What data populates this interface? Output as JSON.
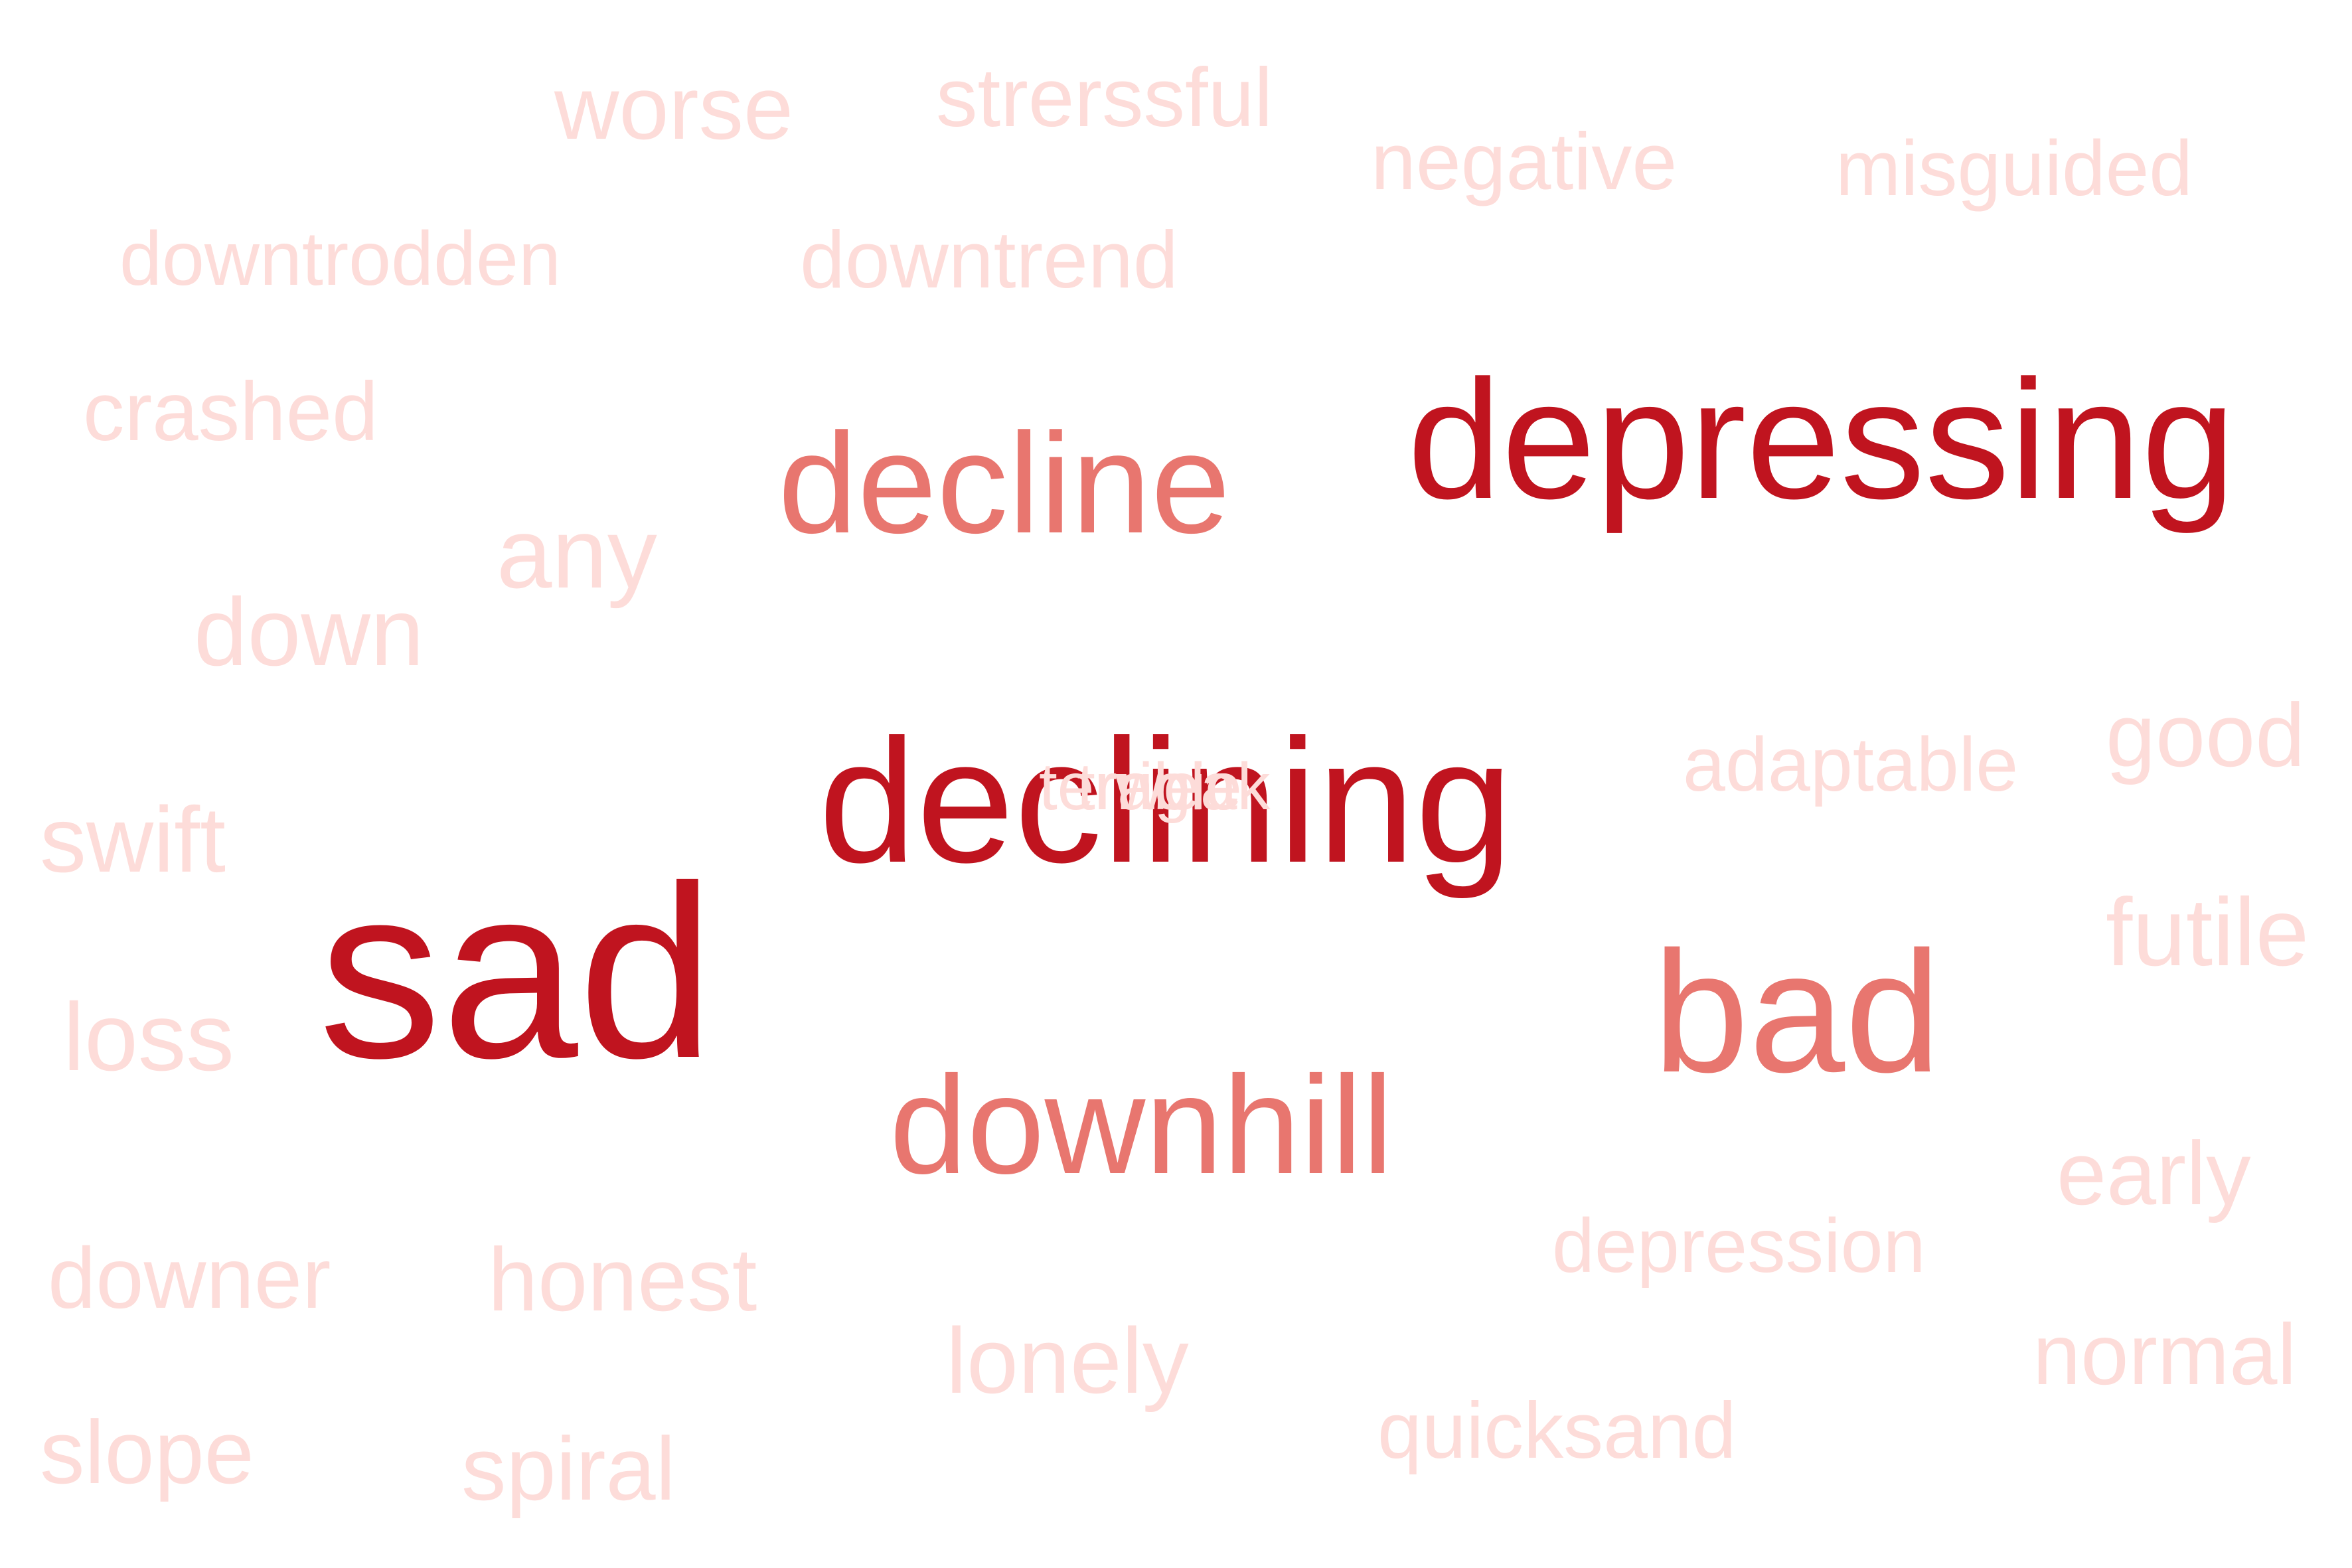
{
  "word_cloud": {
    "colors": {
      "high": "#c0141f",
      "mid": "#e8766f",
      "low": "#fddcd9"
    },
    "words": [
      {
        "id": "depressing",
        "text": "depressing",
        "tier": "high"
      },
      {
        "id": "declining",
        "text": "declining",
        "tier": "high"
      },
      {
        "id": "sad",
        "text": "sad",
        "tier": "high"
      },
      {
        "id": "decline",
        "text": "decline",
        "tier": "mid"
      },
      {
        "id": "bad",
        "text": "bad",
        "tier": "mid"
      },
      {
        "id": "downhill",
        "text": "downhill",
        "tier": "mid"
      },
      {
        "id": "worse",
        "text": "worse",
        "tier": "low"
      },
      {
        "id": "strerssful",
        "text": "strerssful",
        "tier": "low"
      },
      {
        "id": "negative",
        "text": "negative",
        "tier": "low"
      },
      {
        "id": "misguided",
        "text": "misguided",
        "tier": "low"
      },
      {
        "id": "downtrodden",
        "text": "downtrodden",
        "tier": "low"
      },
      {
        "id": "downtrend",
        "text": "downtrend",
        "tier": "low"
      },
      {
        "id": "crashed",
        "text": "crashed",
        "tier": "low"
      },
      {
        "id": "any",
        "text": "any",
        "tier": "low"
      },
      {
        "id": "down",
        "text": "down",
        "tier": "low"
      },
      {
        "id": "adaptable",
        "text": "adaptable",
        "tier": "low"
      },
      {
        "id": "good",
        "text": "good",
        "tier": "low"
      },
      {
        "id": "swift",
        "text": "swift",
        "tier": "low"
      },
      {
        "id": "futile",
        "text": "futile",
        "tier": "low"
      },
      {
        "id": "loss",
        "text": "loss",
        "tier": "low"
      },
      {
        "id": "early",
        "text": "early",
        "tier": "low"
      },
      {
        "id": "downer",
        "text": "downer",
        "tier": "low"
      },
      {
        "id": "honest",
        "text": "honest",
        "tier": "low"
      },
      {
        "id": "depression",
        "text": "depression",
        "tier": "low"
      },
      {
        "id": "lonely",
        "text": "lonely",
        "tier": "low"
      },
      {
        "id": "normal",
        "text": "normal",
        "tier": "low"
      },
      {
        "id": "quicksand",
        "text": "quicksand",
        "tier": "low"
      },
      {
        "id": "slope",
        "text": "slope",
        "tier": "low"
      },
      {
        "id": "spiral",
        "text": "spiral",
        "tier": "low"
      },
      {
        "id": "overlap-1",
        "text": "terrible",
        "tier": "low"
      },
      {
        "id": "overlap-2",
        "text": "tragic",
        "tier": "low"
      },
      {
        "id": "overlap-3",
        "text": "weak",
        "tier": "low"
      }
    ]
  }
}
